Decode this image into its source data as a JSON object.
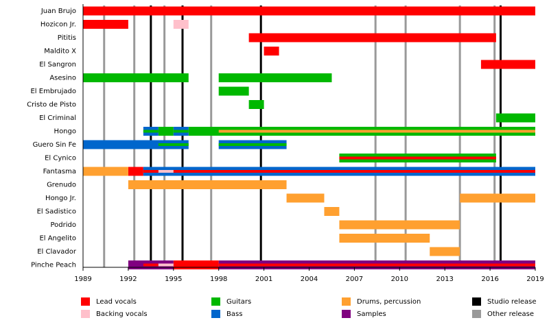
{
  "chart_data": {
    "type": "timeline",
    "categories": [
      "Juan Brujo",
      "Hozicon Jr.",
      "Pititis",
      "Maldito X",
      "El Sangron",
      "Asesino",
      "El Embrujado",
      "Cristo de Pisto",
      "El Criminal",
      "Hongo",
      "Guero Sin Fe",
      "El Cynico",
      "Fantasma",
      "Grenudo",
      "Hongo Jr.",
      "El Sadistico",
      "Podrido",
      "El Angelito",
      "El Clavador",
      "Pinche Peach"
    ],
    "xlim": [
      1989,
      2019
    ],
    "xticks": [
      1989,
      1992,
      1995,
      1998,
      2001,
      2004,
      2007,
      2010,
      2013,
      2016,
      2019
    ],
    "series": [
      {
        "name": "Lead vocals",
        "color": "#ff0000",
        "values": [
          [
            [
              1989,
              2019
            ]
          ],
          [
            [
              1989,
              1992
            ]
          ],
          [
            [
              2000,
              2016.4
            ]
          ],
          [
            [
              2001,
              2002
            ]
          ],
          [
            [
              2015.4,
              2019
            ]
          ],
          [],
          [],
          [],
          [],
          [],
          [],
          [],
          [
            [
              1992,
              1993
            ]
          ],
          [],
          [],
          [],
          [],
          [],
          [],
          [
            [
              1995,
              1998
            ]
          ]
        ],
        "stripe_values": [
          [],
          [],
          [],
          [],
          [],
          [],
          [],
          [],
          [],
          [],
          [],
          [
            [
              2006,
              2016.4
            ]
          ],
          [
            [
              1993,
              2019
            ]
          ],
          [],
          [],
          [],
          [],
          [],
          [],
          [
            [
              1993,
              1994
            ],
            [
              1998,
              2019
            ]
          ]
        ]
      },
      {
        "name": "Backing vocals",
        "color": "#ffc0cb",
        "values": [
          [],
          [
            [
              1995,
              1996
            ]
          ],
          [],
          [],
          [],
          [],
          [],
          [],
          [],
          [],
          [],
          [],
          [],
          [],
          [],
          [],
          [],
          [],
          [],
          []
        ],
        "stripe_values": [
          [],
          [],
          [],
          [],
          [],
          [],
          [],
          [],
          [],
          [],
          [],
          [],
          [
            [
              1994,
              1995
            ]
          ],
          [],
          [],
          [],
          [],
          [],
          [],
          [
            [
              1994,
              1995
            ]
          ]
        ]
      },
      {
        "name": "Guitars",
        "color": "#00b800",
        "values": [
          [],
          [],
          [],
          [],
          [],
          [
            [
              1989,
              1996
            ],
            [
              1998,
              2005.5
            ]
          ],
          [
            [
              1998,
              2000
            ]
          ],
          [
            [
              2000,
              2001
            ]
          ],
          [
            [
              2016.4,
              2019
            ]
          ],
          [
            [
              1994,
              1995
            ],
            [
              1996,
              2019
            ]
          ],
          [],
          [
            [
              2006,
              2016.4
            ]
          ],
          [],
          [],
          [],
          [],
          [],
          [],
          [],
          []
        ],
        "stripe_values": [
          [],
          [],
          [],
          [],
          [],
          [],
          [],
          [],
          [],
          [
            [
              1993,
              1994
            ],
            [
              1995,
              1996
            ]
          ],
          [
            [
              1994,
              1996
            ],
            [
              1998,
              2002.5
            ]
          ],
          [],
          [],
          [],
          [],
          [],
          [],
          [],
          [],
          []
        ]
      },
      {
        "name": "Bass",
        "color": "#0066cc",
        "values": [
          [],
          [],
          [],
          [],
          [],
          [],
          [],
          [],
          [],
          [
            [
              1993,
              1994
            ],
            [
              1995,
              1996
            ]
          ],
          [
            [
              1989,
              1996
            ],
            [
              1998,
              2002.5
            ]
          ],
          [],
          [
            [
              1993,
              2019
            ]
          ],
          [],
          [],
          [],
          [],
          [],
          [],
          []
        ],
        "stripe_values": [
          [],
          [],
          [],
          [],
          [],
          [],
          [],
          [],
          [],
          [],
          [],
          [],
          [],
          [],
          [],
          [],
          [],
          [],
          [],
          []
        ]
      },
      {
        "name": "Drums, percussion",
        "color": "#ffa030",
        "values": [
          [],
          [],
          [],
          [],
          [],
          [],
          [],
          [],
          [],
          [],
          [],
          [],
          [
            [
              1989,
              1992
            ]
          ],
          [
            [
              1992,
              2002.5
            ]
          ],
          [
            [
              2002.5,
              2005
            ],
            [
              2014,
              2019
            ]
          ],
          [
            [
              2005,
              2006
            ]
          ],
          [
            [
              2006,
              2014
            ]
          ],
          [
            [
              2006,
              2012
            ]
          ],
          [
            [
              2012,
              2014
            ]
          ],
          []
        ],
        "stripe_values": [
          [],
          [],
          [],
          [],
          [],
          [],
          [],
          [],
          [],
          [
            [
              1998,
              2019
            ]
          ],
          [],
          [],
          [],
          [],
          [],
          [],
          [],
          [],
          [],
          []
        ]
      },
      {
        "name": "Samples",
        "color": "#800080",
        "values": [
          [],
          [],
          [],
          [],
          [],
          [],
          [],
          [],
          [],
          [],
          [],
          [],
          [],
          [],
          [],
          [],
          [],
          [],
          [],
          [
            [
              1992,
              1995
            ],
            [
              1998,
              2019
            ]
          ]
        ],
        "stripe_values": [
          [],
          [],
          [],
          [],
          [],
          [],
          [],
          [],
          [],
          [],
          [],
          [],
          [],
          [],
          [],
          [],
          [],
          [],
          [],
          []
        ]
      }
    ],
    "releases": [
      {
        "name": "Studio release",
        "color": "#000000",
        "x": [
          1993.5,
          1995.6,
          2000.8,
          2016.7
        ]
      },
      {
        "name": "Other release",
        "color": "#999999",
        "x": [
          1990.4,
          1992.4,
          1994.4,
          1997.5,
          2008.4,
          2010.4,
          2014,
          2016.3
        ]
      }
    ]
  }
}
